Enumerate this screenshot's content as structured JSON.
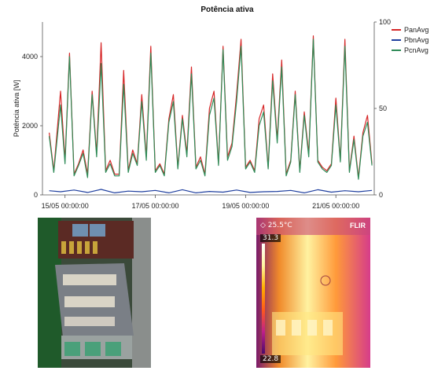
{
  "chart_data": {
    "type": "line",
    "title": "Potência ativa",
    "ylabel": "Potência ativa [W]",
    "ylim": [
      0,
      5000
    ],
    "yticks": [
      0,
      2000,
      4000
    ],
    "y2lim": [
      0,
      100
    ],
    "y2ticks": [
      0,
      50,
      100
    ],
    "xticks": [
      "15/05 00:00:00",
      "17/05 00:00:00",
      "19/05 00:00:00",
      "21/05 00:00:00"
    ],
    "xrange_days": [
      14.5,
      21.85
    ],
    "legend_position": "top-right",
    "series": [
      {
        "name": "PanAvg",
        "color": "#d62728",
        "x": [
          14.65,
          14.75,
          14.9,
          15.0,
          15.1,
          15.2,
          15.3,
          15.4,
          15.5,
          15.6,
          15.7,
          15.8,
          15.9,
          16.0,
          16.1,
          16.2,
          16.3,
          16.4,
          16.5,
          16.6,
          16.7,
          16.8,
          16.9,
          17.0,
          17.1,
          17.2,
          17.3,
          17.4,
          17.5,
          17.6,
          17.7,
          17.8,
          17.9,
          18.0,
          18.1,
          18.2,
          18.3,
          18.4,
          18.5,
          18.6,
          18.7,
          18.8,
          18.9,
          19.0,
          19.1,
          19.2,
          19.3,
          19.4,
          19.5,
          19.6,
          19.7,
          19.8,
          19.9,
          20.0,
          20.1,
          20.2,
          20.3,
          20.4,
          20.5,
          20.6,
          20.7,
          20.8,
          20.9,
          21.0,
          21.1,
          21.2,
          21.3,
          21.4,
          21.5,
          21.6,
          21.7,
          21.8
        ],
        "values": [
          1800,
          700,
          3000,
          1000,
          4100,
          600,
          900,
          1300,
          600,
          3000,
          1200,
          4400,
          700,
          1000,
          600,
          600,
          3600,
          700,
          1300,
          900,
          2900,
          1100,
          4300,
          700,
          900,
          600,
          2200,
          2900,
          800,
          2300,
          1200,
          3700,
          800,
          1100,
          600,
          2500,
          3000,
          900,
          4300,
          1100,
          1500,
          2900,
          4500,
          800,
          1000,
          700,
          2200,
          2600,
          800,
          3500,
          1600,
          3900,
          600,
          1000,
          3000,
          700,
          2400,
          1200,
          4600,
          1000,
          800,
          700,
          900,
          2800,
          1000,
          4500,
          700,
          1700,
          500,
          1800,
          2300,
          900
        ]
      },
      {
        "name": "PbnAvg",
        "color": "#1f3f9f",
        "x": [
          14.65,
          14.9,
          15.2,
          15.5,
          15.8,
          16.1,
          16.4,
          16.7,
          17.0,
          17.3,
          17.6,
          17.9,
          18.2,
          18.5,
          18.8,
          19.1,
          19.4,
          19.7,
          20.0,
          20.3,
          20.6,
          20.9,
          21.2,
          21.5,
          21.8
        ],
        "values": [
          120,
          90,
          140,
          70,
          160,
          60,
          110,
          90,
          130,
          60,
          150,
          60,
          100,
          80,
          140,
          70,
          90,
          100,
          130,
          60,
          150,
          80,
          120,
          90,
          130
        ]
      },
      {
        "name": "PcnAvg",
        "color": "#2e8b57",
        "x": [
          14.65,
          14.75,
          14.9,
          15.0,
          15.1,
          15.2,
          15.3,
          15.4,
          15.5,
          15.6,
          15.7,
          15.8,
          15.9,
          16.0,
          16.1,
          16.2,
          16.3,
          16.4,
          16.5,
          16.6,
          16.7,
          16.8,
          16.9,
          17.0,
          17.1,
          17.2,
          17.3,
          17.4,
          17.5,
          17.6,
          17.7,
          17.8,
          17.9,
          18.0,
          18.1,
          18.2,
          18.3,
          18.4,
          18.5,
          18.6,
          18.7,
          18.8,
          18.9,
          19.0,
          19.1,
          19.2,
          19.3,
          19.4,
          19.5,
          19.6,
          19.7,
          19.8,
          19.9,
          20.0,
          20.1,
          20.2,
          20.3,
          20.4,
          20.5,
          20.6,
          20.7,
          20.8,
          20.9,
          21.0,
          21.1,
          21.2,
          21.3,
          21.4,
          21.5,
          21.6,
          21.7,
          21.8
        ],
        "values": [
          1700,
          650,
          2600,
          900,
          4000,
          550,
          850,
          1200,
          500,
          2900,
          1100,
          3800,
          650,
          900,
          550,
          550,
          3200,
          650,
          1200,
          850,
          2700,
          1000,
          4100,
          650,
          850,
          550,
          2100,
          2700,
          750,
          2200,
          1100,
          3500,
          750,
          1000,
          550,
          2300,
          2800,
          850,
          4200,
          1000,
          1400,
          2700,
          4300,
          750,
          950,
          650,
          2000,
          2400,
          750,
          3300,
          1500,
          3700,
          550,
          950,
          2900,
          650,
          2300,
          1100,
          4500,
          950,
          750,
          650,
          850,
          2600,
          950,
          4300,
          650,
          1600,
          450,
          1700,
          2100,
          850
        ]
      }
    ]
  },
  "thermal": {
    "temperature": "◇ 25.5°C",
    "scale_max": "31.3",
    "scale_min": "22.8",
    "brand": "FLIR"
  }
}
